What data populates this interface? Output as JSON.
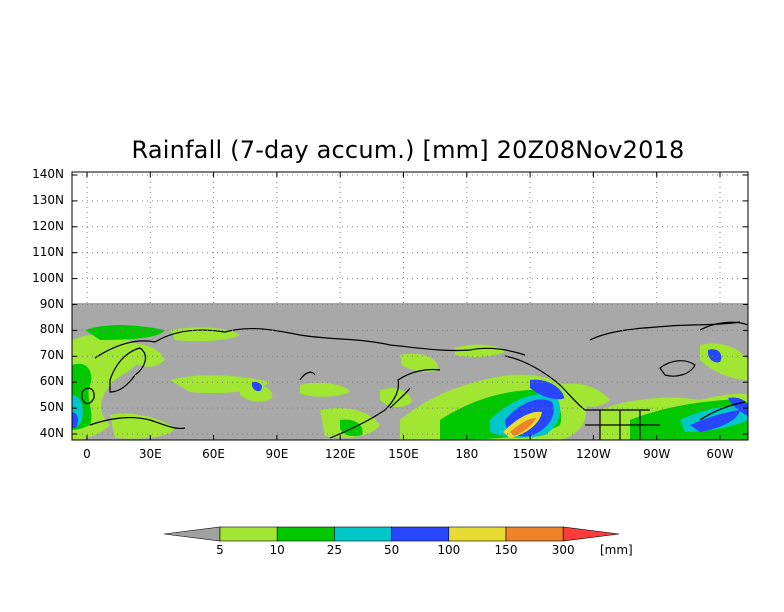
{
  "title": "Rainfall (7-day accum.) [mm] 20Z08Nov2018",
  "lat_labels": [
    "140N",
    "130N",
    "120N",
    "110N",
    "100N",
    "90N",
    "80N",
    "70N",
    "60N",
    "50N",
    "40N"
  ],
  "lon_labels": [
    "0",
    "30E",
    "60E",
    "90E",
    "120E",
    "150E",
    "180",
    "150W",
    "120W",
    "90W",
    "60W"
  ],
  "colorbar": {
    "unit": "[mm]",
    "boundaries": [
      "5",
      "10",
      "25",
      "50",
      "100",
      "150",
      "300"
    ],
    "colors": {
      "below": "#a0a0a0",
      "5-10": "#a0e632",
      "10-25": "#00c800",
      "25-50": "#00c8c8",
      "50-100": "#2846ff",
      "100-150": "#e6dc32",
      "150-300": "#f08228",
      "above": "#fa3c3c"
    }
  },
  "colors": {
    "no_data": "#ffffff",
    "land_outline": "#000000",
    "grid": "#808080"
  }
}
